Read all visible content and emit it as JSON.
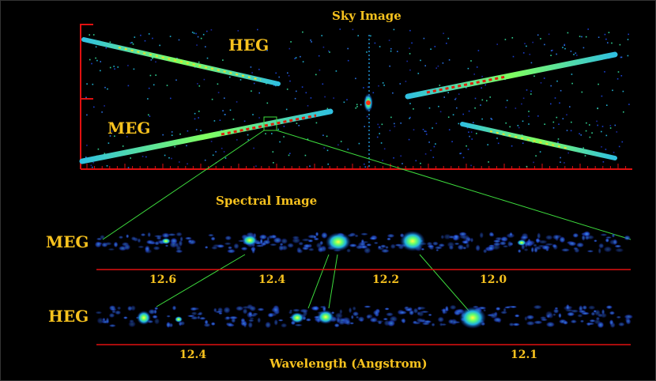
{
  "figure": {
    "sky_title": "Sky Image",
    "spectral_title": "Spectral Image",
    "xaxis_title": "Wavelength (Angstrom)",
    "label_color": "#f7c21e",
    "axis_color": "#e01010",
    "connector_color": "#3ddc3d"
  },
  "sky": {
    "heg_label": "HEG",
    "meg_label": "MEG"
  },
  "spectral": {
    "meg": {
      "label": "MEG",
      "ticks": [
        "12.6",
        "12.4",
        "12.2",
        "12.0"
      ]
    },
    "heg": {
      "label": "HEG",
      "ticks": [
        "12.4",
        "12.1"
      ]
    }
  }
}
